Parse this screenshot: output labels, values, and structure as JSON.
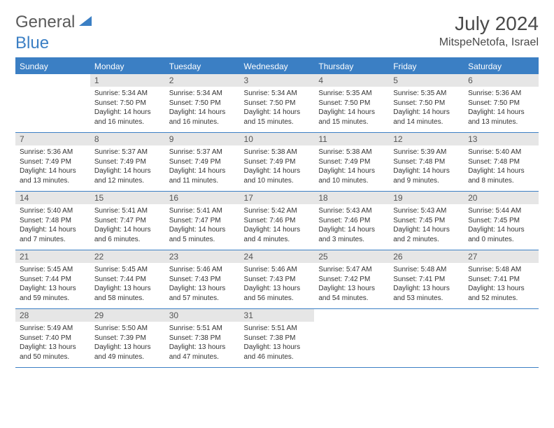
{
  "brand": {
    "part1": "General",
    "part2": "Blue"
  },
  "title": "July 2024",
  "location": "MitspeNetofa, Israel",
  "colors": {
    "accent": "#3b7fc4",
    "header_text": "#ffffff",
    "daynum_bg": "#e6e6e6",
    "body_text": "#333333",
    "title_text": "#4a4a4a"
  },
  "weekdays": [
    "Sunday",
    "Monday",
    "Tuesday",
    "Wednesday",
    "Thursday",
    "Friday",
    "Saturday"
  ],
  "weeks": [
    [
      {
        "n": "",
        "sr": "",
        "ss": "",
        "dl": ""
      },
      {
        "n": "1",
        "sr": "Sunrise: 5:34 AM",
        "ss": "Sunset: 7:50 PM",
        "dl": "Daylight: 14 hours and 16 minutes."
      },
      {
        "n": "2",
        "sr": "Sunrise: 5:34 AM",
        "ss": "Sunset: 7:50 PM",
        "dl": "Daylight: 14 hours and 16 minutes."
      },
      {
        "n": "3",
        "sr": "Sunrise: 5:34 AM",
        "ss": "Sunset: 7:50 PM",
        "dl": "Daylight: 14 hours and 15 minutes."
      },
      {
        "n": "4",
        "sr": "Sunrise: 5:35 AM",
        "ss": "Sunset: 7:50 PM",
        "dl": "Daylight: 14 hours and 15 minutes."
      },
      {
        "n": "5",
        "sr": "Sunrise: 5:35 AM",
        "ss": "Sunset: 7:50 PM",
        "dl": "Daylight: 14 hours and 14 minutes."
      },
      {
        "n": "6",
        "sr": "Sunrise: 5:36 AM",
        "ss": "Sunset: 7:50 PM",
        "dl": "Daylight: 14 hours and 13 minutes."
      }
    ],
    [
      {
        "n": "7",
        "sr": "Sunrise: 5:36 AM",
        "ss": "Sunset: 7:49 PM",
        "dl": "Daylight: 14 hours and 13 minutes."
      },
      {
        "n": "8",
        "sr": "Sunrise: 5:37 AM",
        "ss": "Sunset: 7:49 PM",
        "dl": "Daylight: 14 hours and 12 minutes."
      },
      {
        "n": "9",
        "sr": "Sunrise: 5:37 AM",
        "ss": "Sunset: 7:49 PM",
        "dl": "Daylight: 14 hours and 11 minutes."
      },
      {
        "n": "10",
        "sr": "Sunrise: 5:38 AM",
        "ss": "Sunset: 7:49 PM",
        "dl": "Daylight: 14 hours and 10 minutes."
      },
      {
        "n": "11",
        "sr": "Sunrise: 5:38 AM",
        "ss": "Sunset: 7:49 PM",
        "dl": "Daylight: 14 hours and 10 minutes."
      },
      {
        "n": "12",
        "sr": "Sunrise: 5:39 AM",
        "ss": "Sunset: 7:48 PM",
        "dl": "Daylight: 14 hours and 9 minutes."
      },
      {
        "n": "13",
        "sr": "Sunrise: 5:40 AM",
        "ss": "Sunset: 7:48 PM",
        "dl": "Daylight: 14 hours and 8 minutes."
      }
    ],
    [
      {
        "n": "14",
        "sr": "Sunrise: 5:40 AM",
        "ss": "Sunset: 7:48 PM",
        "dl": "Daylight: 14 hours and 7 minutes."
      },
      {
        "n": "15",
        "sr": "Sunrise: 5:41 AM",
        "ss": "Sunset: 7:47 PM",
        "dl": "Daylight: 14 hours and 6 minutes."
      },
      {
        "n": "16",
        "sr": "Sunrise: 5:41 AM",
        "ss": "Sunset: 7:47 PM",
        "dl": "Daylight: 14 hours and 5 minutes."
      },
      {
        "n": "17",
        "sr": "Sunrise: 5:42 AM",
        "ss": "Sunset: 7:46 PM",
        "dl": "Daylight: 14 hours and 4 minutes."
      },
      {
        "n": "18",
        "sr": "Sunrise: 5:43 AM",
        "ss": "Sunset: 7:46 PM",
        "dl": "Daylight: 14 hours and 3 minutes."
      },
      {
        "n": "19",
        "sr": "Sunrise: 5:43 AM",
        "ss": "Sunset: 7:45 PM",
        "dl": "Daylight: 14 hours and 2 minutes."
      },
      {
        "n": "20",
        "sr": "Sunrise: 5:44 AM",
        "ss": "Sunset: 7:45 PM",
        "dl": "Daylight: 14 hours and 0 minutes."
      }
    ],
    [
      {
        "n": "21",
        "sr": "Sunrise: 5:45 AM",
        "ss": "Sunset: 7:44 PM",
        "dl": "Daylight: 13 hours and 59 minutes."
      },
      {
        "n": "22",
        "sr": "Sunrise: 5:45 AM",
        "ss": "Sunset: 7:44 PM",
        "dl": "Daylight: 13 hours and 58 minutes."
      },
      {
        "n": "23",
        "sr": "Sunrise: 5:46 AM",
        "ss": "Sunset: 7:43 PM",
        "dl": "Daylight: 13 hours and 57 minutes."
      },
      {
        "n": "24",
        "sr": "Sunrise: 5:46 AM",
        "ss": "Sunset: 7:43 PM",
        "dl": "Daylight: 13 hours and 56 minutes."
      },
      {
        "n": "25",
        "sr": "Sunrise: 5:47 AM",
        "ss": "Sunset: 7:42 PM",
        "dl": "Daylight: 13 hours and 54 minutes."
      },
      {
        "n": "26",
        "sr": "Sunrise: 5:48 AM",
        "ss": "Sunset: 7:41 PM",
        "dl": "Daylight: 13 hours and 53 minutes."
      },
      {
        "n": "27",
        "sr": "Sunrise: 5:48 AM",
        "ss": "Sunset: 7:41 PM",
        "dl": "Daylight: 13 hours and 52 minutes."
      }
    ],
    [
      {
        "n": "28",
        "sr": "Sunrise: 5:49 AM",
        "ss": "Sunset: 7:40 PM",
        "dl": "Daylight: 13 hours and 50 minutes."
      },
      {
        "n": "29",
        "sr": "Sunrise: 5:50 AM",
        "ss": "Sunset: 7:39 PM",
        "dl": "Daylight: 13 hours and 49 minutes."
      },
      {
        "n": "30",
        "sr": "Sunrise: 5:51 AM",
        "ss": "Sunset: 7:38 PM",
        "dl": "Daylight: 13 hours and 47 minutes."
      },
      {
        "n": "31",
        "sr": "Sunrise: 5:51 AM",
        "ss": "Sunset: 7:38 PM",
        "dl": "Daylight: 13 hours and 46 minutes."
      },
      {
        "n": "",
        "sr": "",
        "ss": "",
        "dl": ""
      },
      {
        "n": "",
        "sr": "",
        "ss": "",
        "dl": ""
      },
      {
        "n": "",
        "sr": "",
        "ss": "",
        "dl": ""
      }
    ]
  ]
}
